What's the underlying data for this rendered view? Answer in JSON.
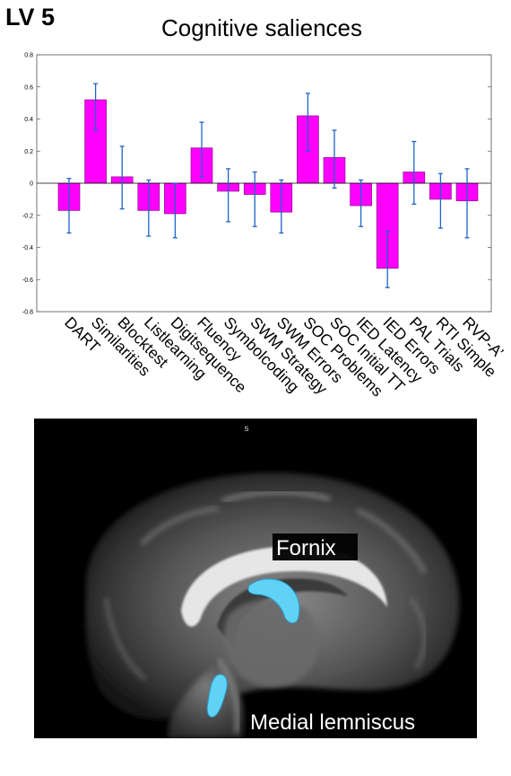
{
  "panel_label": "LV 5",
  "chart_data": {
    "type": "bar",
    "title": "Cognitive saliences",
    "xlabel": "",
    "ylabel": "",
    "ylim": [
      -0.8,
      0.8
    ],
    "yticks": [
      -0.8,
      -0.6,
      -0.4,
      -0.2,
      0,
      0.2,
      0.4,
      0.6,
      0.8
    ],
    "ytick_labels": [
      "-0.8",
      "-0.6",
      "-0.4",
      "-0.2",
      "0",
      "0.2",
      "0.4",
      "0.6",
      "0.8"
    ],
    "categories": [
      "DART",
      "Similarities",
      "Blocktest",
      "Listlearning",
      "Digitsequence",
      "Fluency",
      "Symbolcoding",
      "SWM Strategy",
      "SWM Errors",
      "SOC Problems",
      "SOC Initial TT",
      "IED Latency",
      "IED Errors",
      "PAL Trials",
      "RTI Simple",
      "RVP-A’"
    ],
    "values": [
      -0.17,
      0.52,
      0.04,
      -0.17,
      -0.19,
      0.22,
      -0.05,
      -0.07,
      -0.18,
      0.42,
      0.16,
      -0.14,
      -0.53,
      0.07,
      -0.1,
      -0.11
    ],
    "err_low": [
      -0.31,
      0.33,
      -0.16,
      -0.33,
      -0.34,
      0.04,
      -0.24,
      -0.27,
      -0.31,
      0.2,
      -0.03,
      -0.27,
      -0.65,
      -0.13,
      -0.28,
      -0.34
    ],
    "err_high": [
      0.03,
      0.62,
      0.23,
      0.02,
      0.0,
      0.38,
      0.09,
      0.07,
      0.02,
      0.56,
      0.33,
      0.02,
      -0.3,
      0.26,
      0.06,
      0.09
    ],
    "bar_color": "#ff00ff",
    "error_color": "#1f63c8",
    "grid": false
  },
  "brain": {
    "small_label": "s",
    "fornix_label": "Fornix",
    "medial_lemniscus_label": "Medial lemniscus",
    "highlight_color": "#5fd2f6"
  }
}
